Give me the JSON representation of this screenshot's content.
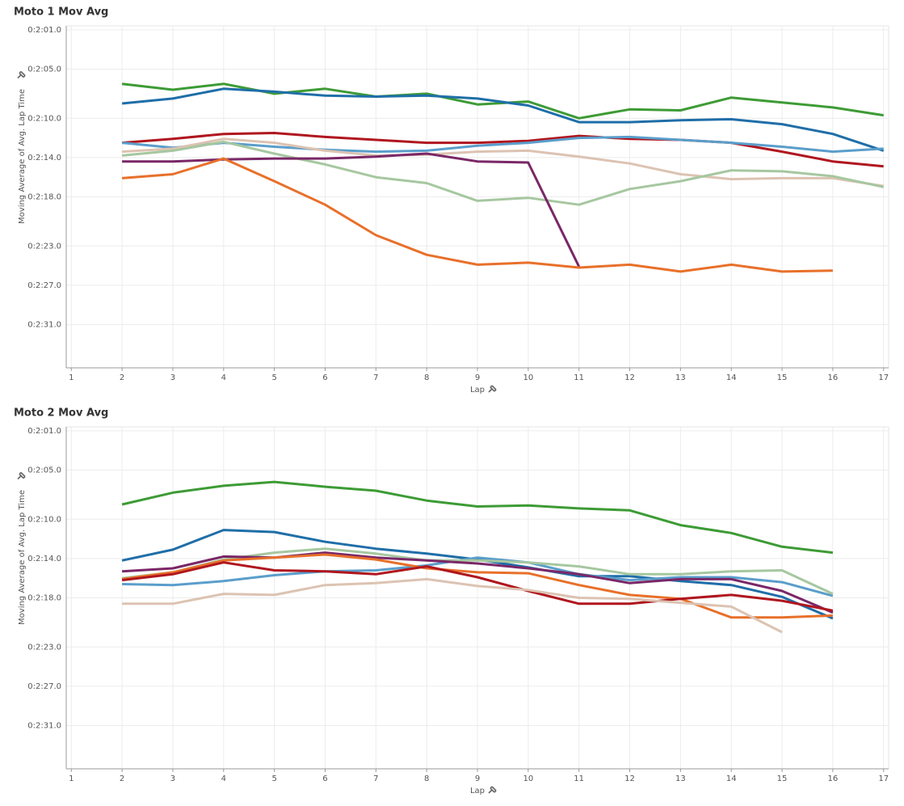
{
  "chart_data": [
    {
      "type": "line",
      "title": "Moto 1 Mov Avg",
      "x_label": "Lap",
      "y_label": "Moving Average of Avg. Lap Time",
      "x": [
        2,
        3,
        4,
        5,
        6,
        7,
        8,
        9,
        10,
        11,
        12,
        13,
        14,
        15,
        16,
        17
      ],
      "xlim": [
        0.9,
        17.1
      ],
      "xticks": [
        1,
        2,
        3,
        4,
        5,
        6,
        7,
        8,
        9,
        10,
        11,
        12,
        13,
        14,
        15,
        16,
        17
      ],
      "ylim": [
        155.4,
        120.6
      ],
      "yticks": [
        {
          "value": 121,
          "label": "0:2:01.0"
        },
        {
          "value": 125,
          "label": "0:2:05.0"
        },
        {
          "value": 130,
          "label": "0:2:10.0"
        },
        {
          "value": 134,
          "label": "0:2:14.0"
        },
        {
          "value": 138,
          "label": "0:2:18.0"
        },
        {
          "value": 143,
          "label": "0:2:23.0"
        },
        {
          "value": 147,
          "label": "0:2:27.0"
        },
        {
          "value": 151,
          "label": "0:2:31.0"
        }
      ],
      "grid": true,
      "series": [
        {
          "color": "#3d9b35",
          "values": [
            126.5,
            127.1,
            126.5,
            127.5,
            127.0,
            127.8,
            127.5,
            128.6,
            128.3,
            130.0,
            129.1,
            129.2,
            127.9,
            128.4,
            128.9,
            129.7
          ]
        },
        {
          "color": "#1f6ea8",
          "values": [
            128.5,
            128.0,
            127.0,
            127.3,
            127.7,
            127.8,
            127.7,
            128.0,
            128.7,
            130.4,
            130.4,
            130.2,
            130.1,
            130.6,
            131.6,
            133.3
          ]
        },
        {
          "color": "#b0161e",
          "values": [
            132.5,
            132.1,
            131.6,
            131.5,
            131.9,
            132.2,
            132.5,
            132.5,
            132.3,
            131.8,
            132.1,
            132.2,
            132.5,
            133.4,
            134.4,
            134.9
          ]
        },
        {
          "color": "#5a9ecb",
          "values": [
            132.5,
            133.0,
            132.5,
            132.9,
            133.2,
            133.4,
            133.3,
            132.8,
            132.5,
            132.0,
            131.9,
            132.2,
            132.5,
            132.9,
            133.4,
            133.1
          ]
        },
        {
          "color": "#dcc3b2",
          "values": [
            133.4,
            133.1,
            132.1,
            132.5,
            133.3,
            133.8,
            133.7,
            133.4,
            133.3,
            133.9,
            134.6,
            135.7,
            136.2,
            136.1,
            136.1,
            136.9
          ]
        },
        {
          "color": "#a6c7a0",
          "values": [
            133.8,
            133.3,
            132.4,
            133.6,
            134.7,
            136.0,
            136.6,
            138.4,
            138.1,
            138.8,
            137.2,
            136.4,
            135.3,
            135.4,
            135.9,
            137.0
          ]
        },
        {
          "color": "#7a2767",
          "values": [
            134.4,
            134.4,
            134.2,
            134.1,
            134.1,
            133.9,
            133.6,
            134.4,
            134.5,
            145.1,
            null,
            null,
            null,
            null,
            null,
            null
          ]
        },
        {
          "color": "#e8702a",
          "values": [
            136.1,
            135.7,
            134.1,
            136.4,
            138.8,
            141.9,
            143.9,
            144.9,
            144.7,
            145.2,
            144.9,
            145.6,
            144.9,
            145.6,
            145.5,
            null
          ]
        }
      ]
    },
    {
      "type": "line",
      "title": "Moto 2 Mov Avg",
      "x_label": "Lap",
      "y_label": "Moving Average of Avg. Lap Time",
      "x": [
        2,
        3,
        4,
        5,
        6,
        7,
        8,
        9,
        10,
        11,
        12,
        13,
        14,
        15,
        16
      ],
      "xlim": [
        0.9,
        17.1
      ],
      "xticks": [
        1,
        2,
        3,
        4,
        5,
        6,
        7,
        8,
        9,
        10,
        11,
        12,
        13,
        14,
        15,
        16,
        17
      ],
      "ylim": [
        155.4,
        120.6
      ],
      "yticks": [
        {
          "value": 121,
          "label": "0:2:01.0"
        },
        {
          "value": 125,
          "label": "0:2:05.0"
        },
        {
          "value": 130,
          "label": "0:2:10.0"
        },
        {
          "value": 134,
          "label": "0:2:14.0"
        },
        {
          "value": 138,
          "label": "0:2:18.0"
        },
        {
          "value": 143,
          "label": "0:2:23.0"
        },
        {
          "value": 147,
          "label": "0:2:27.0"
        },
        {
          "value": 151,
          "label": "0:2:31.0"
        }
      ],
      "grid": true,
      "series": [
        {
          "color": "#3d9b35",
          "values": [
            128.5,
            127.3,
            126.6,
            126.2,
            126.7,
            127.1,
            128.1,
            128.7,
            128.6,
            128.9,
            129.1,
            130.6,
            131.4,
            132.8,
            133.4
          ]
        },
        {
          "color": "#1f6ea8",
          "values": [
            134.2,
            133.1,
            131.1,
            131.3,
            132.3,
            133.0,
            133.5,
            134.1,
            134.9,
            135.8,
            135.8,
            136.3,
            136.7,
            137.9,
            140.1
          ]
        },
        {
          "color": "#5a9ecb",
          "values": [
            136.6,
            136.7,
            136.3,
            135.7,
            135.3,
            135.2,
            134.7,
            133.9,
            134.4,
            135.6,
            136.2,
            135.9,
            135.9,
            136.4,
            137.8
          ]
        },
        {
          "color": "#a6c7a0",
          "values": [
            136.0,
            135.4,
            134.1,
            133.4,
            133.0,
            133.5,
            134.2,
            134.2,
            134.4,
            134.8,
            135.6,
            135.6,
            135.3,
            135.2,
            137.6
          ]
        },
        {
          "color": "#7a2767",
          "values": [
            135.3,
            135.0,
            133.8,
            133.9,
            133.4,
            133.9,
            134.2,
            134.5,
            135.0,
            135.6,
            136.5,
            136.1,
            136.1,
            137.3,
            139.5
          ]
        },
        {
          "color": "#e8702a",
          "values": [
            136.1,
            135.4,
            134.2,
            133.9,
            133.6,
            134.1,
            135.0,
            135.4,
            135.5,
            136.7,
            137.7,
            138.1,
            140.0,
            140.0,
            139.8
          ]
        },
        {
          "color": "#b0161e",
          "values": [
            136.2,
            135.6,
            134.4,
            135.2,
            135.3,
            135.6,
            134.8,
            135.9,
            137.3,
            138.6,
            138.6,
            138.1,
            137.7,
            138.3,
            139.3
          ]
        },
        {
          "color": "#dcc3b2",
          "values": [
            138.6,
            138.6,
            137.6,
            137.7,
            136.7,
            136.5,
            136.1,
            136.8,
            137.2,
            138.0,
            138.1,
            138.5,
            138.9,
            141.5,
            null
          ]
        }
      ]
    }
  ]
}
